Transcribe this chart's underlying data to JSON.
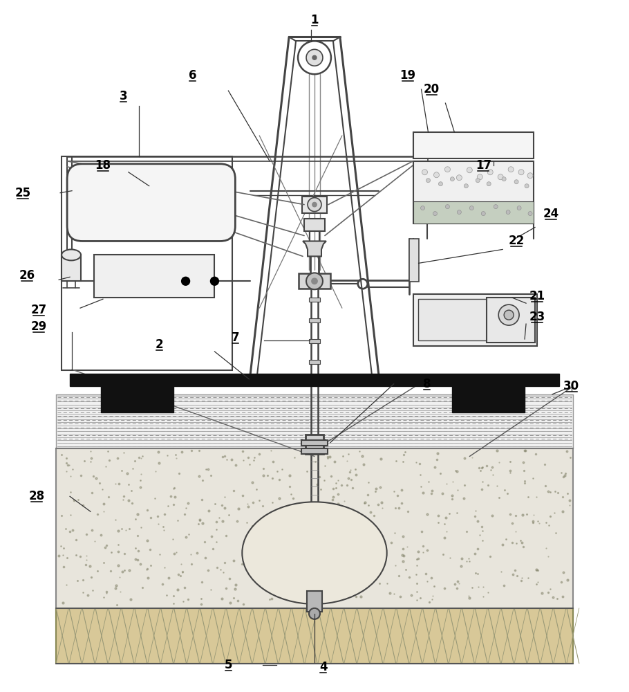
{
  "bg_color": "#ffffff",
  "lc": "#444444",
  "fig_width": 9.1,
  "fig_height": 10.0,
  "labels": [
    [
      "1",
      455,
      28
    ],
    [
      "2",
      230,
      498
    ],
    [
      "3",
      178,
      138
    ],
    [
      "4",
      468,
      965
    ],
    [
      "5",
      330,
      962
    ],
    [
      "6",
      278,
      108
    ],
    [
      "7",
      340,
      488
    ],
    [
      "8",
      618,
      555
    ],
    [
      "17",
      700,
      238
    ],
    [
      "18",
      148,
      238
    ],
    [
      "19",
      588,
      108
    ],
    [
      "20",
      622,
      128
    ],
    [
      "21",
      778,
      428
    ],
    [
      "22",
      748,
      348
    ],
    [
      "23",
      778,
      458
    ],
    [
      "24",
      798,
      308
    ],
    [
      "25",
      32,
      278
    ],
    [
      "26",
      35,
      398
    ],
    [
      "27",
      55,
      448
    ],
    [
      "28",
      52,
      718
    ],
    [
      "29",
      55,
      472
    ],
    [
      "30",
      828,
      558
    ]
  ]
}
